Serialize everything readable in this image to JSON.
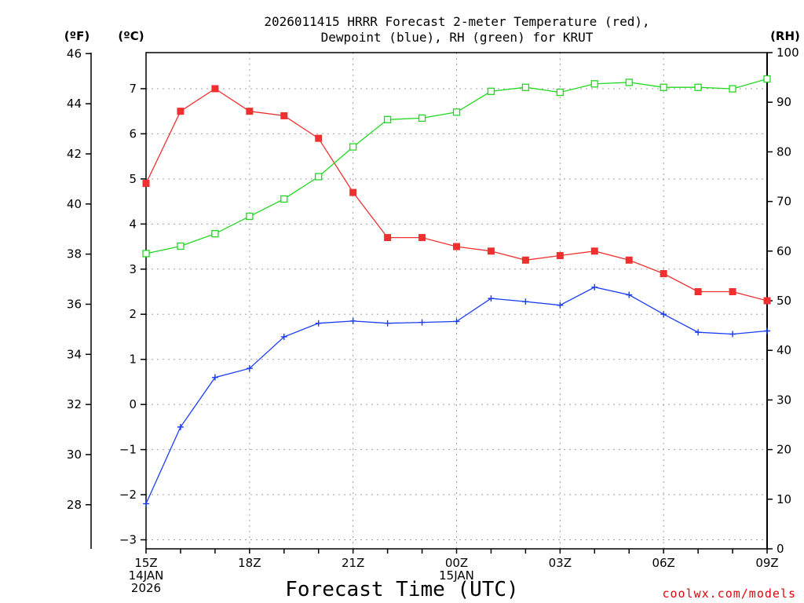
{
  "chart_data": {
    "type": "line",
    "title_line1": "2026011415 HRRR Forecast 2-meter Temperature (red),",
    "title_line2": "Dewpoint (blue), RH (green) for KRUT",
    "xlabel": "Forecast Time (UTC)",
    "credit": "coolwx.com/models",
    "units": {
      "fahrenheit": "(ºF)",
      "celsius": "(ºC)",
      "rh": "(RH)"
    },
    "x_hours": [
      0,
      1,
      2,
      3,
      4,
      5,
      6,
      7,
      8,
      9,
      10,
      11,
      12,
      13,
      14,
      15,
      16,
      17,
      18
    ],
    "x_ticks": [
      {
        "hour": 0,
        "lines": [
          "15Z",
          "14JAN",
          "2026"
        ]
      },
      {
        "hour": 3,
        "lines": [
          "18Z"
        ]
      },
      {
        "hour": 6,
        "lines": [
          "21Z"
        ]
      },
      {
        "hour": 9,
        "lines": [
          "00Z",
          "15JAN"
        ]
      },
      {
        "hour": 12,
        "lines": [
          "03Z"
        ]
      },
      {
        "hour": 15,
        "lines": [
          "06Z"
        ]
      },
      {
        "hour": 18,
        "lines": [
          "09Z"
        ]
      }
    ],
    "celsius_axis": {
      "min": -3.2,
      "max": 7.8,
      "ticks": [
        "−3",
        "−2",
        "−1",
        "0",
        "1",
        "2",
        "3",
        "4",
        "5",
        "6",
        "7"
      ],
      "tick_values": [
        -3,
        -2,
        -1,
        0,
        1,
        2,
        3,
        4,
        5,
        6,
        7
      ]
    },
    "fahrenheit_axis": {
      "ticks": [
        "28",
        "30",
        "32",
        "34",
        "36",
        "38",
        "40",
        "42",
        "44",
        "46"
      ],
      "tick_values": [
        28,
        30,
        32,
        34,
        36,
        38,
        40,
        42,
        44,
        46
      ]
    },
    "rh_axis": {
      "min": 0,
      "max": 100,
      "ticks": [
        "0",
        "10",
        "20",
        "30",
        "40",
        "50",
        "60",
        "70",
        "80",
        "90",
        "100"
      ],
      "tick_values": [
        0,
        10,
        20,
        30,
        40,
        50,
        60,
        70,
        80,
        90,
        100
      ]
    },
    "series": [
      {
        "name": "Temperature",
        "color": "#f03030",
        "marker": "filled-square",
        "axis": "celsius",
        "values": [
          4.9,
          6.5,
          7.0,
          6.5,
          6.4,
          5.9,
          4.7,
          3.7,
          3.7,
          3.5,
          3.4,
          3.2,
          3.3,
          3.4,
          3.2,
          2.9,
          2.5,
          2.5,
          2.3
        ]
      },
      {
        "name": "Dewpoint",
        "color": "#1a3cf5",
        "marker": "plus",
        "axis": "celsius",
        "values": [
          -2.2,
          -0.5,
          0.6,
          0.8,
          1.5,
          1.8,
          1.85,
          1.8,
          1.82,
          1.84,
          2.35,
          2.28,
          2.2,
          2.6,
          2.43,
          2.0,
          1.6,
          1.56,
          1.63
        ]
      },
      {
        "name": "RH",
        "color": "#20d820",
        "marker": "open-square",
        "axis": "rh",
        "values": [
          59.5,
          61,
          63.5,
          67,
          70.5,
          75,
          81,
          86.5,
          86.8,
          88,
          92.2,
          93,
          92,
          93.7,
          94,
          93,
          93,
          92.7,
          94.7
        ]
      }
    ]
  }
}
